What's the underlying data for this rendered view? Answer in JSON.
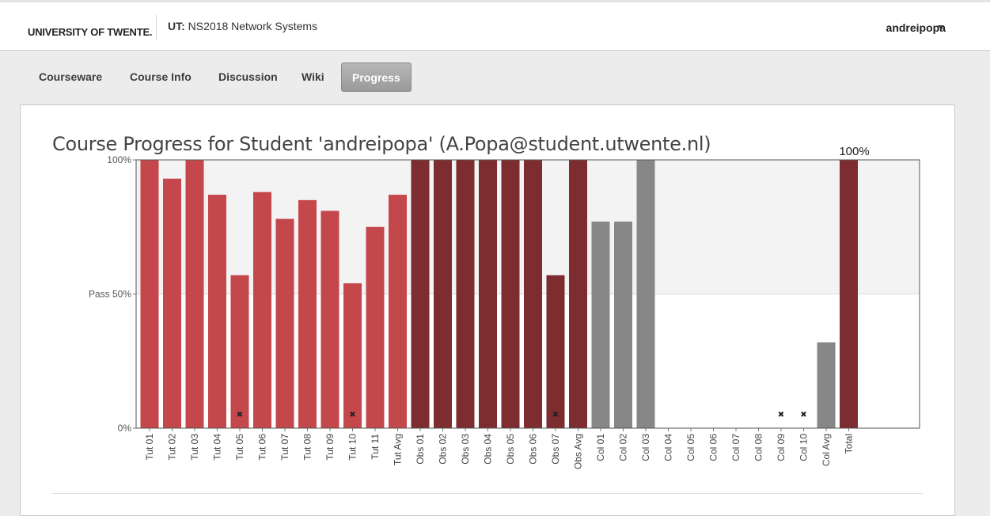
{
  "header": {
    "logo_text": "UNIVERSITY OF TWENTE.",
    "course_prefix": "UT:",
    "course_name": "NS2018 Network Systems",
    "username": "andreipopa"
  },
  "nav": {
    "tabs": [
      {
        "label": "Courseware",
        "active": false
      },
      {
        "label": "Course Info",
        "active": false
      },
      {
        "label": "Discussion",
        "active": false
      },
      {
        "label": "Wiki",
        "active": false
      },
      {
        "label": "Progress",
        "active": true
      }
    ]
  },
  "chart_data": {
    "type": "bar",
    "title": "Course Progress for Student 'andreipopa' (A.Popa@student.utwente.nl)",
    "ylim": [
      0,
      100
    ],
    "yticks": [
      {
        "value": 0,
        "label": "0%"
      },
      {
        "value": 50,
        "label": "Pass 50%"
      },
      {
        "value": 100,
        "label": "100%"
      }
    ],
    "pass_threshold": 50,
    "total_label": "100%",
    "colors": {
      "tutorial": "#c4474b",
      "observation": "#7d2c30",
      "collaboration": "#878787",
      "total": "#7d2c30"
    },
    "categories": [
      "Tut 01",
      "Tut 02",
      "Tut 03",
      "Tut 04",
      "Tut 05",
      "Tut 06",
      "Tut 07",
      "Tut 08",
      "Tut 09",
      "Tut 10",
      "Tut 11",
      "Tut Avg",
      "Obs 01",
      "Obs 02",
      "Obs 03",
      "Obs 04",
      "Obs 05",
      "Obs 06",
      "Obs 07",
      "Obs Avg",
      "Col 01",
      "Col 02",
      "Col 03",
      "Col 04",
      "Col 05",
      "Col 06",
      "Col 07",
      "Col 08",
      "Col 09",
      "Col 10",
      "Col Avg",
      "Total"
    ],
    "values": [
      100,
      93,
      100,
      87,
      57,
      88,
      78,
      85,
      81,
      54,
      75,
      87,
      100,
      100,
      100,
      100,
      100,
      100,
      57,
      100,
      77,
      77,
      100,
      0,
      0,
      0,
      0,
      0,
      0,
      0,
      32,
      100
    ],
    "groups": [
      "tutorial",
      "tutorial",
      "tutorial",
      "tutorial",
      "tutorial",
      "tutorial",
      "tutorial",
      "tutorial",
      "tutorial",
      "tutorial",
      "tutorial",
      "tutorial",
      "observation",
      "observation",
      "observation",
      "observation",
      "observation",
      "observation",
      "observation",
      "observation",
      "collaboration",
      "collaboration",
      "collaboration",
      "collaboration",
      "collaboration",
      "collaboration",
      "collaboration",
      "collaboration",
      "collaboration",
      "collaboration",
      "collaboration",
      "total"
    ],
    "dropped": [
      "Tut 05",
      "Tut 10",
      "Obs 07",
      "Col 09",
      "Col 10"
    ],
    "dropped_marker": "✖"
  }
}
